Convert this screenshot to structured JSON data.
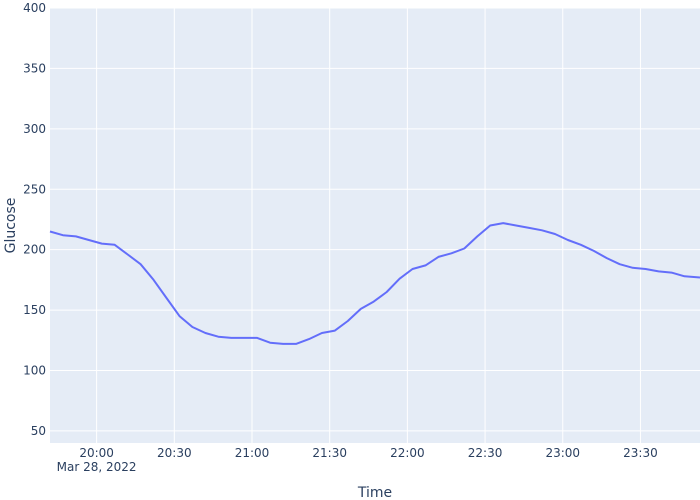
{
  "chart_data": {
    "type": "line",
    "xlabel": "Time",
    "ylabel": "Glucose",
    "ylim": [
      40,
      400
    ],
    "y_ticks": [
      50,
      100,
      150,
      200,
      250,
      300,
      350,
      400
    ],
    "x_range": [
      "2022-03-28 19:42",
      "2022-03-28 23:53"
    ],
    "x_ticks": [
      "20:00",
      "20:30",
      "21:00",
      "21:30",
      "22:00",
      "22:30",
      "23:00",
      "23:30"
    ],
    "x_tick_values": [
      "2022-03-28 20:00",
      "2022-03-28 20:30",
      "2022-03-28 21:00",
      "2022-03-28 21:30",
      "2022-03-28 22:00",
      "2022-03-28 22:30",
      "2022-03-28 23:00",
      "2022-03-28 23:30"
    ],
    "x_date_label": "Mar 28, 2022",
    "grid": true,
    "colors": {
      "line": "#636efa",
      "plot_bg": "#e5ecf6",
      "grid": "#ffffff",
      "text": "#2a3f5f"
    },
    "series": [
      {
        "x": [
          "2022-03-28 19:42",
          "2022-03-28 19:47",
          "2022-03-28 19:52",
          "2022-03-28 19:57",
          "2022-03-28 20:02",
          "2022-03-28 20:07",
          "2022-03-28 20:12",
          "2022-03-28 20:17",
          "2022-03-28 20:22",
          "2022-03-28 20:27",
          "2022-03-28 20:32",
          "2022-03-28 20:37",
          "2022-03-28 20:42",
          "2022-03-28 20:47",
          "2022-03-28 20:52",
          "2022-03-28 20:57",
          "2022-03-28 21:02",
          "2022-03-28 21:07",
          "2022-03-28 21:12",
          "2022-03-28 21:17",
          "2022-03-28 21:22",
          "2022-03-28 21:27",
          "2022-03-28 21:32",
          "2022-03-28 21:37",
          "2022-03-28 21:42",
          "2022-03-28 21:47",
          "2022-03-28 21:52",
          "2022-03-28 21:57",
          "2022-03-28 22:02",
          "2022-03-28 22:07",
          "2022-03-28 22:12",
          "2022-03-28 22:17",
          "2022-03-28 22:22",
          "2022-03-28 22:27",
          "2022-03-28 22:32",
          "2022-03-28 22:37",
          "2022-03-28 22:42",
          "2022-03-28 22:47",
          "2022-03-28 22:52",
          "2022-03-28 22:57",
          "2022-03-28 23:02",
          "2022-03-28 23:07",
          "2022-03-28 23:12",
          "2022-03-28 23:17",
          "2022-03-28 23:22",
          "2022-03-28 23:27",
          "2022-03-28 23:32",
          "2022-03-28 23:37",
          "2022-03-28 23:42",
          "2022-03-28 23:47",
          "2022-03-28 23:53"
        ],
        "values": [
          215,
          212,
          211,
          208,
          205,
          204,
          196,
          188,
          175,
          160,
          145,
          136,
          131,
          128,
          127,
          127,
          127,
          123,
          122,
          122,
          126,
          131,
          133,
          141,
          151,
          157,
          165,
          176,
          184,
          187,
          194,
          197,
          201,
          211,
          220,
          222,
          220,
          218,
          216,
          213,
          208,
          204,
          199,
          193,
          188,
          185,
          184,
          182,
          181,
          178,
          177
        ]
      }
    ]
  }
}
